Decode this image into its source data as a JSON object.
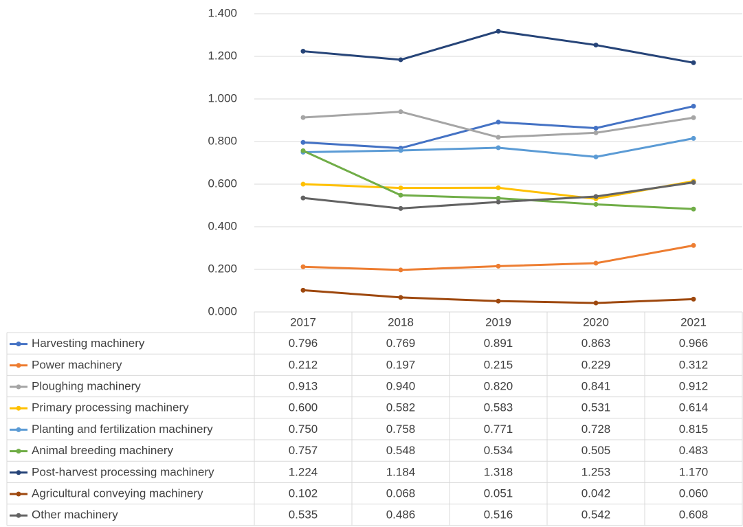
{
  "chart_data": {
    "type": "line",
    "categories": [
      "2017",
      "2018",
      "2019",
      "2020",
      "2021"
    ],
    "ylim": [
      0,
      1.4
    ],
    "yticks": [
      {
        "value": 0,
        "label": "0.000"
      },
      {
        "value": 0.2,
        "label": "0.200"
      },
      {
        "value": 0.4,
        "label": "0.400"
      },
      {
        "value": 0.6,
        "label": "0.600"
      },
      {
        "value": 0.8,
        "label": "0.800"
      },
      {
        "value": 1.0,
        "label": "1.000"
      },
      {
        "value": 1.2,
        "label": "1.200"
      },
      {
        "value": 1.4,
        "label": "1.400"
      }
    ],
    "grid": true,
    "legend": "table",
    "series": [
      {
        "name": "Harvesting machinery",
        "color": "#4472c4",
        "values": [
          0.796,
          0.769,
          0.891,
          0.863,
          0.966
        ],
        "value_labels": [
          "0.796",
          "0.769",
          "0.891",
          "0.863",
          "0.966"
        ]
      },
      {
        "name": "Power machinery",
        "color": "#ed7d31",
        "values": [
          0.212,
          0.197,
          0.215,
          0.229,
          0.312
        ],
        "value_labels": [
          "0.212",
          "0.197",
          "0.215",
          "0.229",
          "0.312"
        ]
      },
      {
        "name": "Ploughing machinery",
        "color": "#a5a5a5",
        "values": [
          0.913,
          0.94,
          0.82,
          0.841,
          0.912
        ],
        "value_labels": [
          "0.913",
          "0.940",
          "0.820",
          "0.841",
          "0.912"
        ]
      },
      {
        "name": "Primary processing machinery",
        "color": "#ffc000",
        "values": [
          0.6,
          0.582,
          0.583,
          0.531,
          0.614
        ],
        "value_labels": [
          "0.600",
          "0.582",
          "0.583",
          "0.531",
          "0.614"
        ]
      },
      {
        "name": "Planting and fertilization machinery",
        "color": "#5b9bd5",
        "values": [
          0.75,
          0.758,
          0.771,
          0.728,
          0.815
        ],
        "value_labels": [
          "0.750",
          "0.758",
          "0.771",
          "0.728",
          "0.815"
        ]
      },
      {
        "name": "Animal breeding machinery",
        "color": "#70ad47",
        "values": [
          0.757,
          0.548,
          0.534,
          0.505,
          0.483
        ],
        "value_labels": [
          "0.757",
          "0.548",
          "0.534",
          "0.505",
          "0.483"
        ]
      },
      {
        "name": "Post-harvest processing machinery",
        "color": "#264478",
        "values": [
          1.224,
          1.184,
          1.318,
          1.253,
          1.17
        ],
        "value_labels": [
          "1.224",
          "1.184",
          "1.318",
          "1.253",
          "1.170"
        ]
      },
      {
        "name": "Agricultural conveying machinery",
        "color": "#9e480e",
        "values": [
          0.102,
          0.068,
          0.051,
          0.042,
          0.06
        ],
        "value_labels": [
          "0.102",
          "0.068",
          "0.051",
          "0.042",
          "0.060"
        ]
      },
      {
        "name": "Other machinery",
        "color": "#636363",
        "values": [
          0.535,
          0.486,
          0.516,
          0.542,
          0.608
        ],
        "value_labels": [
          "0.535",
          "0.486",
          "0.516",
          "0.542",
          "0.608"
        ]
      }
    ]
  }
}
